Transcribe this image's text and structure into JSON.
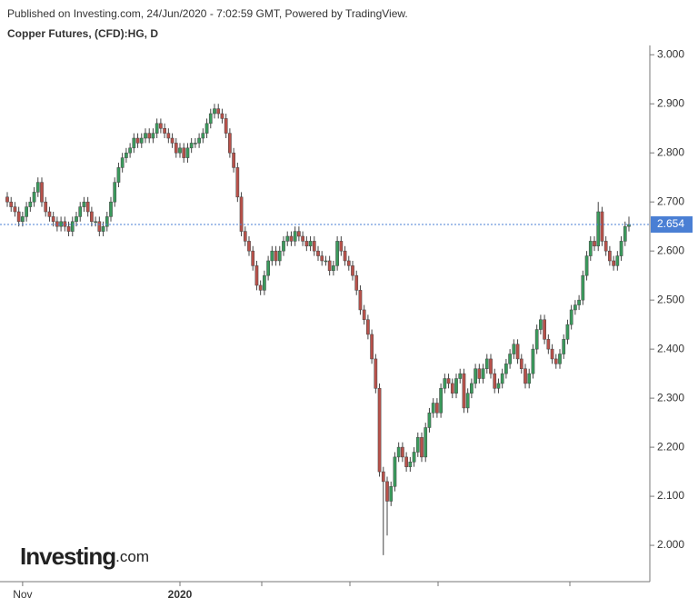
{
  "header": {
    "published": "Published on Investing.com, 24/Jun/2020 - 7:02:59 GMT, Powered by TradingView.",
    "logo_main": "Investing",
    "logo_suffix": ".com"
  },
  "chart_data": {
    "type": "candlestick",
    "title": "Copper Futures, (CFD):HG, D",
    "up_color": "#3a9a5c",
    "down_color": "#b8514a",
    "last_line_color": "#4a7fd4",
    "ylim": [
      1.926,
      3.019
    ],
    "yticks": [
      {
        "value": 2,
        "label": "2.000"
      },
      {
        "value": 2.1,
        "label": "2.100"
      },
      {
        "value": 2.2,
        "label": "2.200"
      },
      {
        "value": 2.3,
        "label": "2.300"
      },
      {
        "value": 2.4,
        "label": "2.400"
      },
      {
        "value": 2.5,
        "label": "2.500"
      },
      {
        "value": 2.6,
        "label": "2.600"
      },
      {
        "value": 2.7,
        "label": "2.700"
      },
      {
        "value": 2.8,
        "label": "2.800"
      },
      {
        "value": 2.9,
        "label": "2.900"
      },
      {
        "value": 3,
        "label": "3.000"
      }
    ],
    "categories": [
      null,
      null,
      null,
      null,
      "Nov",
      null,
      null,
      null,
      null,
      null,
      null,
      null,
      null,
      null,
      null,
      null,
      null,
      null,
      null,
      null,
      null,
      null,
      null,
      null,
      null,
      null,
      null,
      null,
      null,
      null,
      null,
      null,
      null,
      null,
      null,
      null,
      null,
      null,
      null,
      null,
      null,
      null,
      null,
      null,
      null,
      "2020",
      null,
      null,
      null,
      null,
      null,
      null,
      null,
      null,
      null,
      null,
      null,
      null,
      null,
      null,
      null,
      null,
      null,
      null,
      null,
      null,
      null,
      null,
      null,
      null,
      null,
      null,
      null,
      null,
      null,
      null,
      null,
      null,
      null,
      null,
      null,
      null,
      null,
      null,
      null,
      null,
      null,
      null,
      null,
      null,
      null,
      null,
      null,
      null,
      null,
      null,
      null,
      null,
      null,
      null,
      null,
      null,
      null,
      null,
      null,
      null,
      null,
      null,
      null,
      null,
      null,
      null,
      null,
      null,
      null,
      null,
      null,
      null,
      null,
      null,
      null,
      null,
      null,
      null,
      null,
      null,
      null,
      null,
      null,
      null,
      null,
      null,
      null,
      null,
      null,
      null,
      null,
      null,
      null,
      null,
      null,
      null,
      null,
      null,
      null,
      null,
      null,
      null,
      null,
      null,
      null,
      null,
      null,
      null,
      null,
      null,
      null,
      null,
      null,
      null,
      null,
      null,
      null
    ],
    "open": [
      2.71,
      2.7,
      2.69,
      2.68,
      2.66,
      2.67,
      2.69,
      2.7,
      2.72,
      2.74,
      2.7,
      2.68,
      2.67,
      2.66,
      2.65,
      2.66,
      2.65,
      2.64,
      2.66,
      2.67,
      2.69,
      2.7,
      2.68,
      2.66,
      2.66,
      2.64,
      2.65,
      2.67,
      2.7,
      2.74,
      2.77,
      2.79,
      2.8,
      2.81,
      2.83,
      2.82,
      2.83,
      2.84,
      2.83,
      2.84,
      2.86,
      2.85,
      2.84,
      2.83,
      2.82,
      2.8,
      2.81,
      2.79,
      2.81,
      2.82,
      2.82,
      2.83,
      2.84,
      2.86,
      2.88,
      2.89,
      2.88,
      2.87,
      2.84,
      2.8,
      2.77,
      2.71,
      2.64,
      2.62,
      2.6,
      2.57,
      2.53,
      2.52,
      2.55,
      2.58,
      2.6,
      2.58,
      2.6,
      2.62,
      2.63,
      2.62,
      2.64,
      2.63,
      2.62,
      2.61,
      2.62,
      2.6,
      2.59,
      2.58,
      2.58,
      2.56,
      2.57,
      2.62,
      2.6,
      2.58,
      2.57,
      2.55,
      2.52,
      2.48,
      2.46,
      2.43,
      2.38,
      2.32,
      2.15,
      2.13,
      2.09,
      2.12,
      2.18,
      2.2,
      2.18,
      2.16,
      2.17,
      2.19,
      2.22,
      2.18,
      2.24,
      2.27,
      2.29,
      2.27,
      2.32,
      2.34,
      2.33,
      2.31,
      2.34,
      2.35,
      2.28,
      2.31,
      2.33,
      2.36,
      2.34,
      2.36,
      2.38,
      2.35,
      2.32,
      2.33,
      2.35,
      2.37,
      2.39,
      2.41,
      2.38,
      2.36,
      2.33,
      2.35,
      2.4,
      2.44,
      2.46,
      2.42,
      2.4,
      2.38,
      2.37,
      2.39,
      2.42,
      2.45,
      2.48,
      2.49,
      2.5,
      2.55,
      2.59,
      2.62,
      2.61,
      2.68,
      2.62,
      2.6,
      2.58,
      2.57,
      2.59,
      2.62,
      2.65
    ],
    "high": [
      2.72,
      2.71,
      2.7,
      2.69,
      2.68,
      2.7,
      2.71,
      2.73,
      2.75,
      2.75,
      2.71,
      2.69,
      2.68,
      2.67,
      2.67,
      2.67,
      2.66,
      2.67,
      2.68,
      2.7,
      2.71,
      2.71,
      2.69,
      2.67,
      2.67,
      2.66,
      2.68,
      2.71,
      2.75,
      2.78,
      2.8,
      2.81,
      2.82,
      2.84,
      2.84,
      2.84,
      2.85,
      2.85,
      2.85,
      2.87,
      2.87,
      2.86,
      2.85,
      2.84,
      2.83,
      2.82,
      2.82,
      2.82,
      2.83,
      2.83,
      2.84,
      2.85,
      2.87,
      2.89,
      2.9,
      2.9,
      2.89,
      2.88,
      2.85,
      2.81,
      2.78,
      2.72,
      2.65,
      2.63,
      2.61,
      2.58,
      2.54,
      2.56,
      2.59,
      2.61,
      2.61,
      2.61,
      2.63,
      2.64,
      2.64,
      2.65,
      2.65,
      2.64,
      2.63,
      2.63,
      2.63,
      2.61,
      2.6,
      2.59,
      2.59,
      2.58,
      2.63,
      2.63,
      2.61,
      2.59,
      2.58,
      2.56,
      2.53,
      2.49,
      2.47,
      2.44,
      2.39,
      2.33,
      2.16,
      2.14,
      2.13,
      2.19,
      2.21,
      2.21,
      2.19,
      2.18,
      2.2,
      2.23,
      2.23,
      2.25,
      2.28,
      2.3,
      2.3,
      2.33,
      2.35,
      2.35,
      2.34,
      2.35,
      2.36,
      2.36,
      2.32,
      2.34,
      2.37,
      2.37,
      2.37,
      2.39,
      2.39,
      2.36,
      2.34,
      2.36,
      2.38,
      2.4,
      2.42,
      2.42,
      2.39,
      2.37,
      2.36,
      2.41,
      2.45,
      2.47,
      2.47,
      2.43,
      2.41,
      2.39,
      2.4,
      2.43,
      2.46,
      2.49,
      2.5,
      2.51,
      2.56,
      2.6,
      2.63,
      2.63,
      2.7,
      2.69,
      2.63,
      2.61,
      2.59,
      2.6,
      2.63,
      2.66,
      2.67
    ],
    "low": [
      2.69,
      2.68,
      2.67,
      2.65,
      2.65,
      2.66,
      2.68,
      2.69,
      2.71,
      2.69,
      2.67,
      2.66,
      2.65,
      2.64,
      2.64,
      2.64,
      2.63,
      2.63,
      2.65,
      2.66,
      2.68,
      2.67,
      2.65,
      2.65,
      2.63,
      2.63,
      2.64,
      2.66,
      2.69,
      2.73,
      2.76,
      2.78,
      2.79,
      2.8,
      2.81,
      2.81,
      2.82,
      2.82,
      2.82,
      2.83,
      2.84,
      2.83,
      2.82,
      2.81,
      2.79,
      2.79,
      2.78,
      2.78,
      2.8,
      2.81,
      2.81,
      2.82,
      2.83,
      2.85,
      2.87,
      2.87,
      2.86,
      2.83,
      2.79,
      2.76,
      2.7,
      2.63,
      2.61,
      2.59,
      2.56,
      2.52,
      2.51,
      2.51,
      2.54,
      2.57,
      2.57,
      2.57,
      2.59,
      2.61,
      2.61,
      2.61,
      2.62,
      2.61,
      2.6,
      2.6,
      2.59,
      2.58,
      2.57,
      2.57,
      2.55,
      2.55,
      2.56,
      2.59,
      2.57,
      2.56,
      2.54,
      2.51,
      2.47,
      2.45,
      2.42,
      2.37,
      2.31,
      2.14,
      1.98,
      2.02,
      2.08,
      2.11,
      2.17,
      2.17,
      2.15,
      2.15,
      2.16,
      2.18,
      2.17,
      2.17,
      2.23,
      2.26,
      2.26,
      2.26,
      2.31,
      2.32,
      2.3,
      2.3,
      2.33,
      2.27,
      2.27,
      2.3,
      2.32,
      2.33,
      2.33,
      2.35,
      2.34,
      2.31,
      2.31,
      2.32,
      2.34,
      2.36,
      2.38,
      2.37,
      2.35,
      2.32,
      2.32,
      2.34,
      2.39,
      2.43,
      2.41,
      2.39,
      2.37,
      2.36,
      2.36,
      2.38,
      2.41,
      2.44,
      2.47,
      2.48,
      2.49,
      2.54,
      2.58,
      2.6,
      2.6,
      2.61,
      2.59,
      2.57,
      2.56,
      2.56,
      2.58,
      2.61,
      2.64
    ],
    "close": [
      2.7,
      2.69,
      2.68,
      2.66,
      2.67,
      2.69,
      2.7,
      2.72,
      2.74,
      2.7,
      2.68,
      2.67,
      2.66,
      2.65,
      2.66,
      2.65,
      2.64,
      2.66,
      2.67,
      2.69,
      2.7,
      2.68,
      2.66,
      2.66,
      2.64,
      2.65,
      2.67,
      2.7,
      2.74,
      2.77,
      2.79,
      2.8,
      2.81,
      2.83,
      2.82,
      2.83,
      2.84,
      2.83,
      2.84,
      2.86,
      2.85,
      2.84,
      2.83,
      2.82,
      2.8,
      2.81,
      2.79,
      2.81,
      2.82,
      2.82,
      2.83,
      2.84,
      2.86,
      2.88,
      2.89,
      2.88,
      2.87,
      2.84,
      2.8,
      2.77,
      2.71,
      2.64,
      2.62,
      2.6,
      2.57,
      2.53,
      2.52,
      2.55,
      2.58,
      2.6,
      2.58,
      2.6,
      2.62,
      2.63,
      2.62,
      2.64,
      2.63,
      2.62,
      2.61,
      2.62,
      2.6,
      2.59,
      2.58,
      2.58,
      2.56,
      2.57,
      2.62,
      2.6,
      2.58,
      2.57,
      2.55,
      2.52,
      2.48,
      2.46,
      2.43,
      2.38,
      2.32,
      2.15,
      2.13,
      2.09,
      2.12,
      2.18,
      2.2,
      2.18,
      2.16,
      2.17,
      2.19,
      2.22,
      2.18,
      2.24,
      2.27,
      2.29,
      2.27,
      2.32,
      2.34,
      2.33,
      2.31,
      2.34,
      2.35,
      2.28,
      2.31,
      2.33,
      2.36,
      2.34,
      2.36,
      2.38,
      2.35,
      2.32,
      2.33,
      2.35,
      2.37,
      2.39,
      2.41,
      2.38,
      2.36,
      2.33,
      2.35,
      2.4,
      2.44,
      2.46,
      2.42,
      2.4,
      2.38,
      2.37,
      2.39,
      2.42,
      2.45,
      2.48,
      2.49,
      2.5,
      2.55,
      2.59,
      2.62,
      2.61,
      2.68,
      2.62,
      2.6,
      2.58,
      2.57,
      2.59,
      2.62,
      2.65,
      2.654
    ]
  }
}
